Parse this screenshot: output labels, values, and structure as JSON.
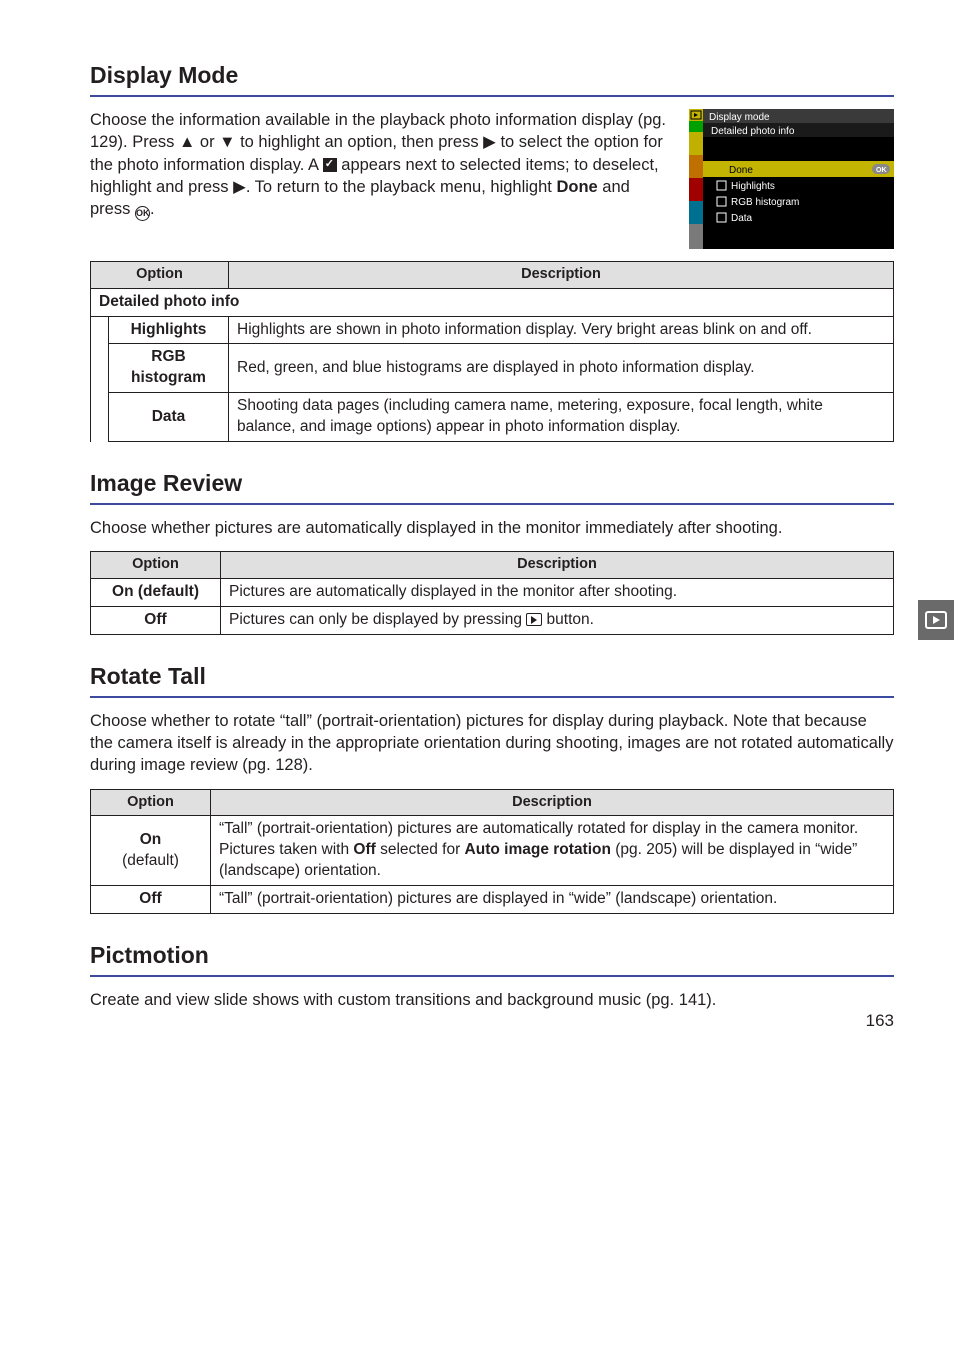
{
  "page_number": "163",
  "sections": {
    "display_mode": {
      "title": "Display Mode",
      "intro_html": "Choose the information available in the playback photo information display (pg. 129).  Press <span class='glyph'>▲</span> or <span class='glyph'>▼</span> to highlight an option, then press <span class='glyph'>▶</span> to select the option for the photo information display.  A <span class='checkbox-filled'></span> appears next to selected items; to deselect, highlight and press <span class='glyph'>▶</span>.  To return to the playback menu, highlight <b>Done</b> and press <span class='ok-circle'>OK</span>.",
      "table": {
        "headers": [
          "Option",
          "Description"
        ],
        "subhead": "Detailed photo info",
        "rows": [
          {
            "option": "Highlights",
            "desc": "Highlights are shown in photo information display. Very bright areas blink on and off."
          },
          {
            "option": "RGB histogram",
            "desc": "Red, green, and blue histograms are displayed in photo information display."
          },
          {
            "option": "Data",
            "desc": "Shooting data pages (including camera name, metering, exposure, focal length, white balance, and image options) appear in photo information display."
          }
        ]
      },
      "thumb": {
        "bg": "#000000",
        "title_bg": "#3a3a3a",
        "title_label": "Display mode",
        "subtitle": "Detailed photo info",
        "hilite_bg": "#c2b400",
        "hilite_text": "Done",
        "ok_label": "OK",
        "leftbar_colors": [
          "#00a000",
          "#c0b000",
          "#c07000",
          "#a00000",
          "#007090",
          "#7a7a7a"
        ],
        "items": [
          "Highlights",
          "RGB histogram",
          "Data"
        ]
      }
    },
    "image_review": {
      "title": "Image Review",
      "intro": "Choose whether pictures are automatically displayed in the monitor immediately after shooting.",
      "table": {
        "headers": [
          "Option",
          "Description"
        ],
        "rows": [
          {
            "option_html": "<b>On</b> (default)",
            "desc": "Pictures are automatically displayed in the monitor after shooting."
          },
          {
            "option_html": "<b>Off</b>",
            "desc_html": "Pictures can only be displayed by pressing <span class='play-box'></span> button."
          }
        ]
      }
    },
    "rotate_tall": {
      "title": "Rotate Tall",
      "intro": "Choose whether to rotate “tall” (portrait-orientation) pictures for display during playback.  Note that because the camera itself is already in the appropriate orientation during shooting, images are not rotated automatically during image review (pg. 128).",
      "table": {
        "headers": [
          "Option",
          "Description"
        ],
        "rows": [
          {
            "option_html": "<b>On</b><span class='sub'>(default)</span>",
            "desc_html": "“Tall” (portrait-orientation) pictures are automatically rotated for display in the camera monitor.  Pictures taken with <b>Off</b> selected for <b>Auto image rotation</b> (pg. 205) will be displayed in “wide” (landscape) orientation."
          },
          {
            "option_html": "<b>Off</b>",
            "desc": "“Tall” (portrait-orientation) pictures are displayed in “wide” (landscape) orientation."
          }
        ]
      }
    },
    "pictmotion": {
      "title": "Pictmotion",
      "intro": "Create and view slide shows with custom transitions and background music (pg. 141)."
    }
  }
}
